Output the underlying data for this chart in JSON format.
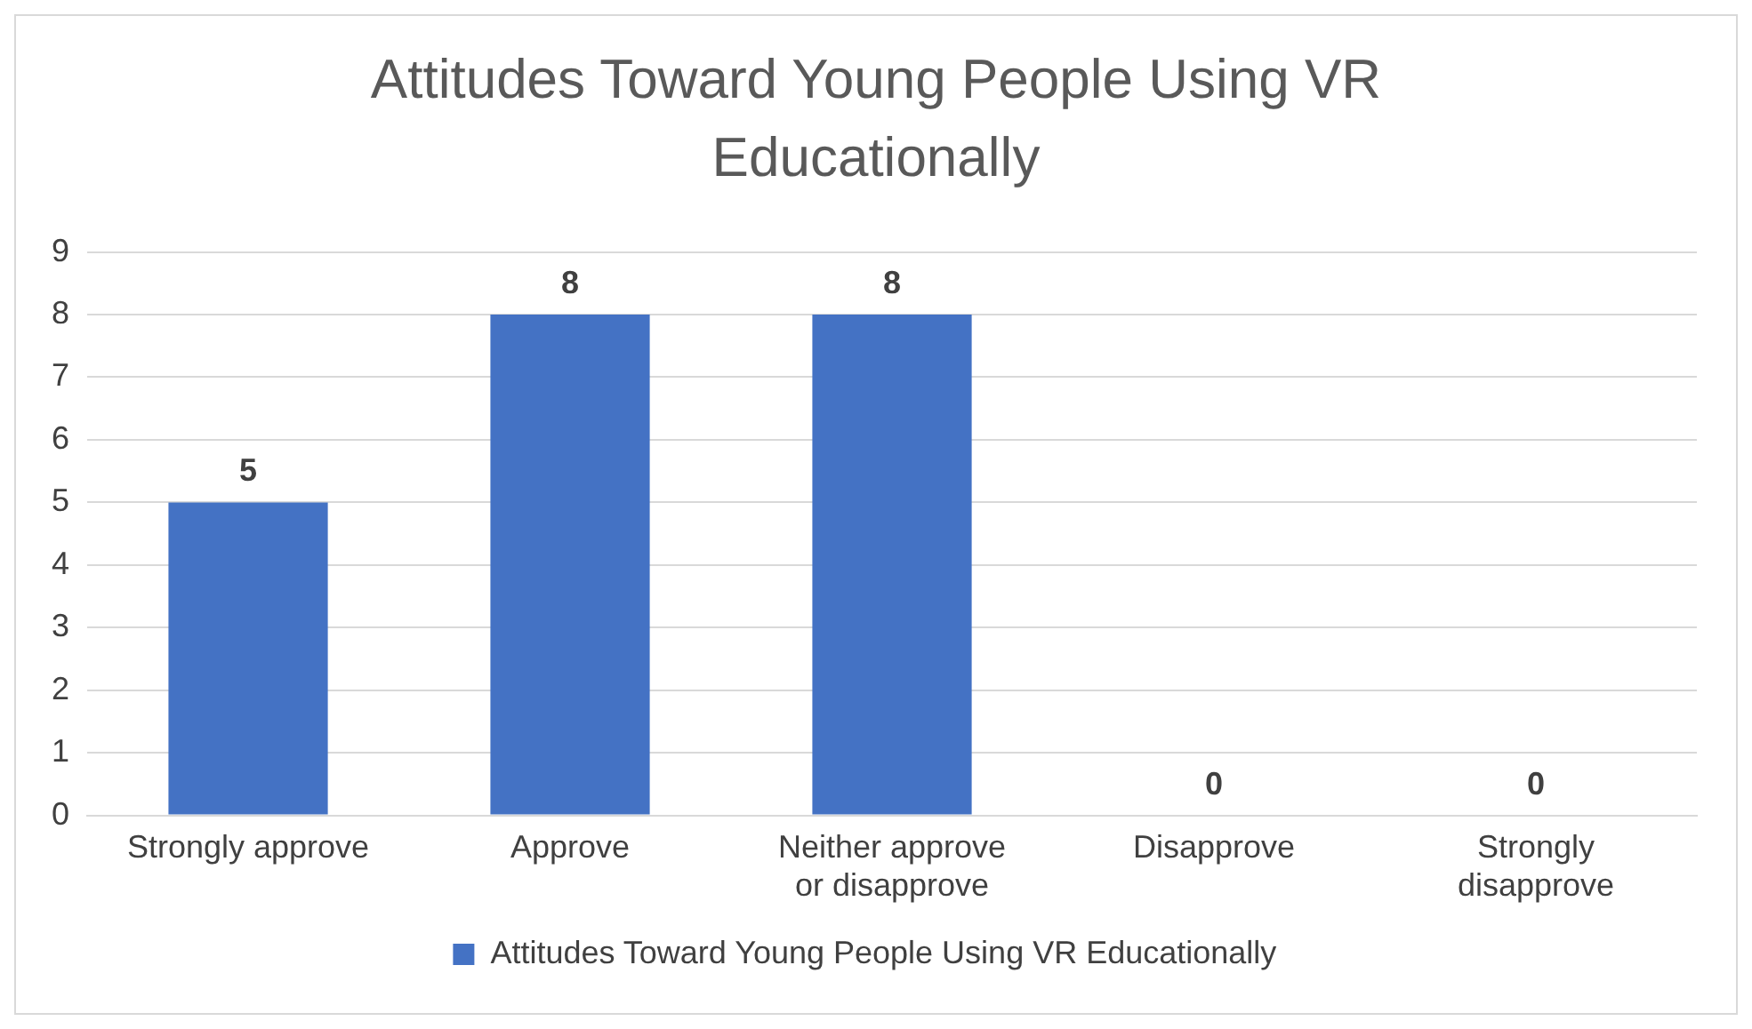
{
  "chart_data": {
    "type": "bar",
    "title": "Attitudes Toward Young People Using VR Educationally",
    "categories": [
      "Strongly approve",
      "Approve",
      "Neither approve or disapprove",
      "Disapprove",
      "Strongly disapprove"
    ],
    "series": [
      {
        "name": "Attitudes Toward Young People Using VR Educationally",
        "color": "#4472c4",
        "values": [
          5,
          8,
          8,
          0,
          0
        ]
      }
    ],
    "ylim": [
      0,
      9
    ],
    "yticks": [
      0,
      1,
      2,
      3,
      4,
      5,
      6,
      7,
      8,
      9
    ],
    "grid": "y",
    "legend": "bottom",
    "data_labels": true
  }
}
